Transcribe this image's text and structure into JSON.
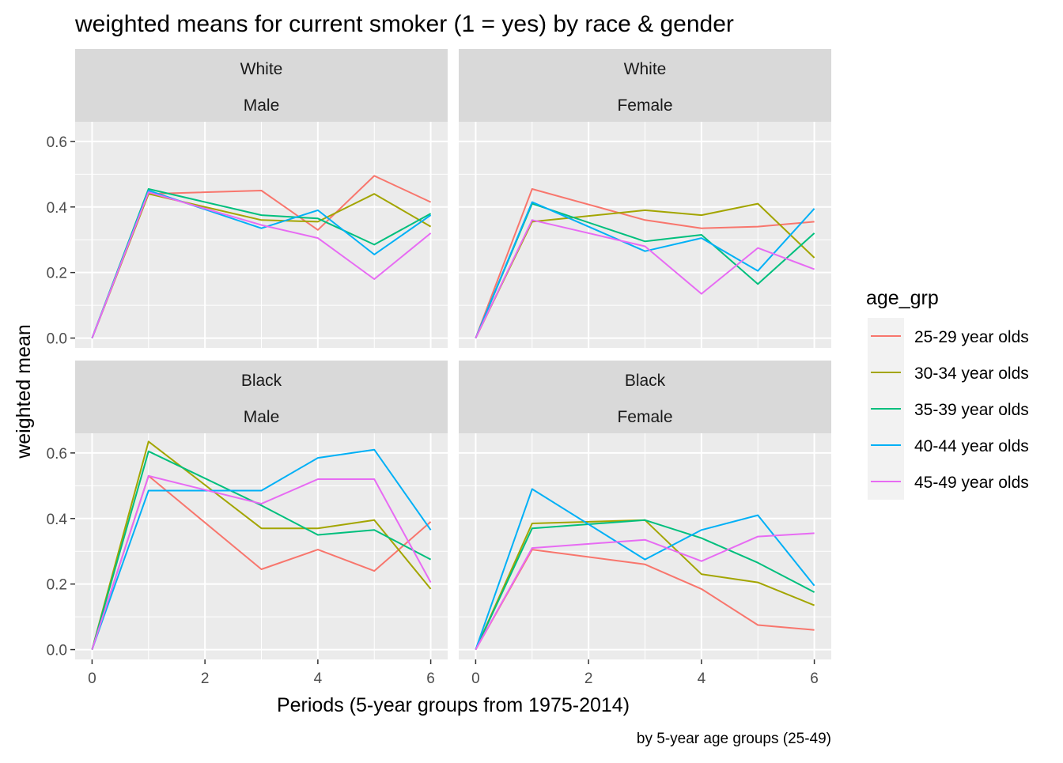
{
  "chart_data": {
    "type": "line",
    "title": "weighted means for current smoker (1 = yes) by race & gender",
    "xlabel": "Periods (5-year groups from 1975-2014)",
    "ylabel": "weighted mean",
    "caption": "by 5-year age groups (25-49)",
    "x": [
      0,
      1,
      2,
      3,
      4,
      5,
      6
    ],
    "x_ticks": [
      0,
      2,
      4,
      6
    ],
    "x_tick_labels": [
      "0",
      "2",
      "4",
      "6"
    ],
    "y_ticks": [
      0.0,
      0.2,
      0.4,
      0.6
    ],
    "y_tick_labels": [
      "0.0",
      "0.2",
      "0.4",
      "0.6"
    ],
    "xlim": [
      -0.3,
      6.3
    ],
    "ylim": [
      -0.03,
      0.66
    ],
    "grid": true,
    "legend": {
      "title": "age_grp",
      "position": "right",
      "entries": [
        {
          "name": "25-29 year olds",
          "color": "#F8766D"
        },
        {
          "name": "30-34 year olds",
          "color": "#A3A500"
        },
        {
          "name": "35-39 year olds",
          "color": "#00BF7D"
        },
        {
          "name": "40-44 year olds",
          "color": "#00B0F6"
        },
        {
          "name": "45-49 year olds",
          "color": "#E76BF3"
        }
      ]
    },
    "panels": [
      {
        "race": "White",
        "gender": "Male",
        "series": [
          {
            "name": "25-29 year olds",
            "values": [
              0.0,
              0.44,
              null,
              0.45,
              0.33,
              0.495,
              0.415
            ]
          },
          {
            "name": "30-34 year olds",
            "values": [
              0.0,
              0.44,
              null,
              0.36,
              0.355,
              0.44,
              0.34
            ]
          },
          {
            "name": "35-39 year olds",
            "values": [
              0.0,
              0.455,
              null,
              0.375,
              0.365,
              0.285,
              0.38
            ]
          },
          {
            "name": "40-44 year olds",
            "values": [
              0.0,
              0.45,
              null,
              0.335,
              0.39,
              0.255,
              0.375
            ]
          },
          {
            "name": "45-49 year olds",
            "values": [
              0.0,
              0.445,
              null,
              0.345,
              0.305,
              0.18,
              0.32
            ]
          }
        ]
      },
      {
        "race": "White",
        "gender": "Female",
        "series": [
          {
            "name": "25-29 year olds",
            "values": [
              0.0,
              0.455,
              null,
              0.36,
              0.335,
              0.34,
              0.355
            ]
          },
          {
            "name": "30-34 year olds",
            "values": [
              0.0,
              0.355,
              null,
              0.39,
              0.375,
              0.41,
              0.245
            ]
          },
          {
            "name": "35-39 year olds",
            "values": [
              0.0,
              0.41,
              null,
              0.295,
              0.315,
              0.165,
              0.32
            ]
          },
          {
            "name": "40-44 year olds",
            "values": [
              0.0,
              0.415,
              null,
              0.265,
              0.305,
              0.205,
              0.395
            ]
          },
          {
            "name": "45-49 year olds",
            "values": [
              0.0,
              0.36,
              null,
              0.28,
              0.135,
              0.275,
              0.21
            ]
          }
        ]
      },
      {
        "race": "Black",
        "gender": "Male",
        "series": [
          {
            "name": "25-29 year olds",
            "values": [
              0.0,
              0.53,
              null,
              0.245,
              0.305,
              0.24,
              0.39
            ]
          },
          {
            "name": "30-34 year olds",
            "values": [
              0.0,
              0.635,
              null,
              0.37,
              0.37,
              0.395,
              0.185
            ]
          },
          {
            "name": "35-39 year olds",
            "values": [
              0.0,
              0.605,
              null,
              0.44,
              0.35,
              0.365,
              0.275
            ]
          },
          {
            "name": "40-44 year olds",
            "values": [
              0.0,
              0.485,
              null,
              0.485,
              0.585,
              0.61,
              0.365
            ]
          },
          {
            "name": "45-49 year olds",
            "values": [
              0.0,
              0.53,
              null,
              0.445,
              0.52,
              0.52,
              0.205
            ]
          }
        ]
      },
      {
        "race": "Black",
        "gender": "Female",
        "series": [
          {
            "name": "25-29 year olds",
            "values": [
              0.0,
              0.305,
              null,
              0.26,
              0.185,
              0.075,
              0.06
            ]
          },
          {
            "name": "30-34 year olds",
            "values": [
              0.0,
              0.385,
              null,
              0.395,
              0.23,
              0.205,
              0.135
            ]
          },
          {
            "name": "35-39 year olds",
            "values": [
              0.0,
              0.37,
              null,
              0.395,
              0.34,
              0.265,
              0.175
            ]
          },
          {
            "name": "40-44 year olds",
            "values": [
              0.0,
              0.49,
              null,
              0.275,
              0.365,
              0.41,
              0.195
            ]
          },
          {
            "name": "45-49 year olds",
            "values": [
              0.0,
              0.31,
              null,
              0.335,
              0.27,
              0.345,
              0.355
            ]
          }
        ]
      }
    ]
  }
}
